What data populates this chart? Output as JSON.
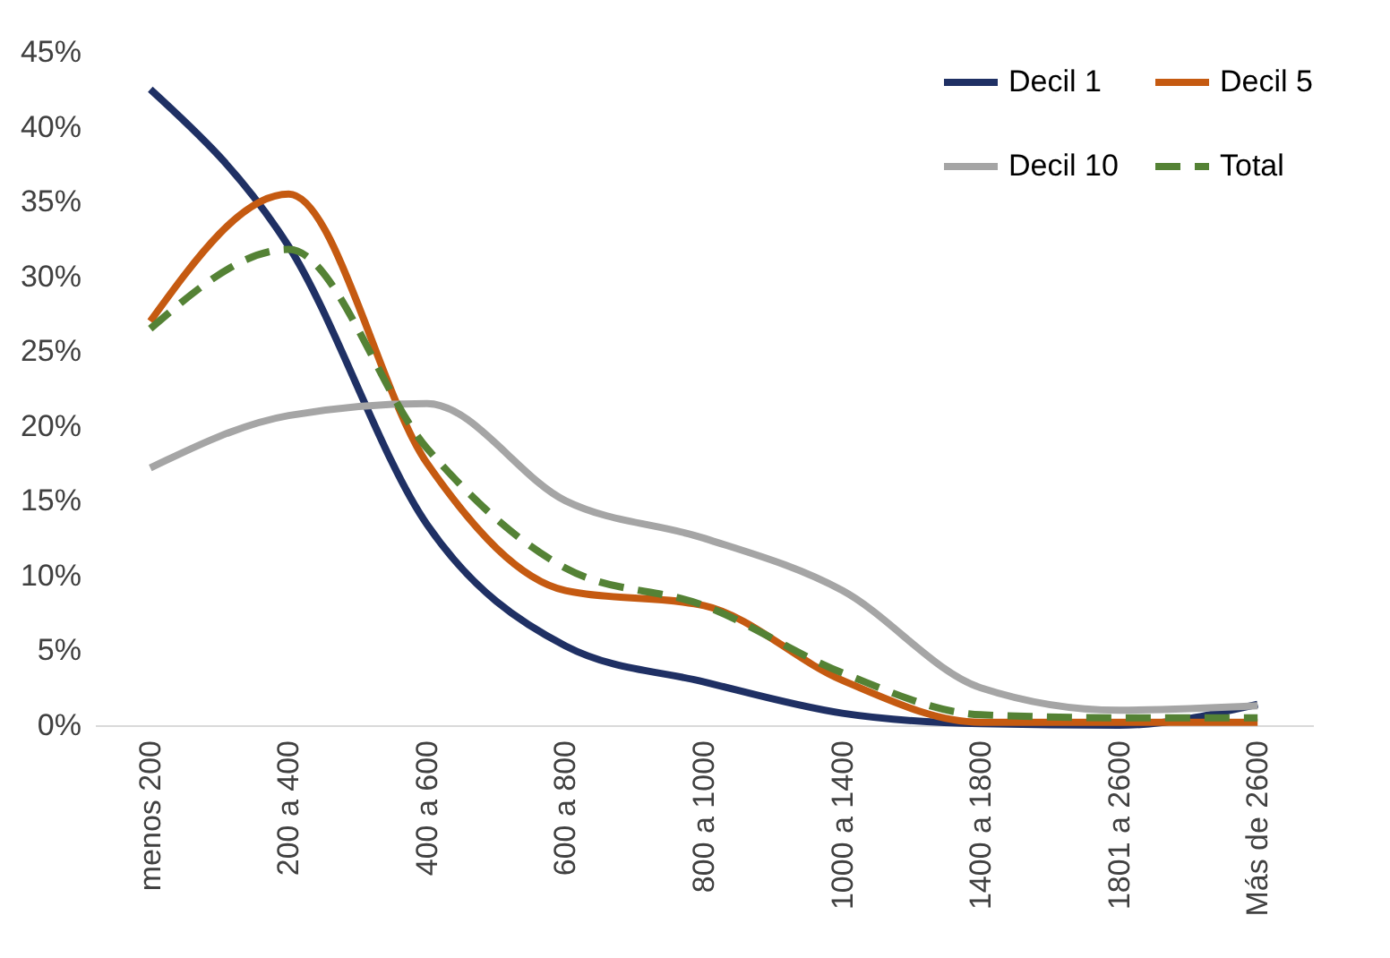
{
  "chart_data": {
    "type": "line",
    "categories": [
      "menos 200",
      "200 a 400",
      "400 a 600",
      "600 a 800",
      "800 a 1000",
      "1000 a 1400",
      "1400 a 1800",
      "1801 a 2600",
      "Más de 2600"
    ],
    "series": [
      {
        "name": "Decil 1",
        "color": "#1f3064",
        "line_style": "solid",
        "values": [
          42.5,
          32,
          13.4,
          5.3,
          2.9,
          0.8,
          0.1,
          0,
          1.4
        ]
      },
      {
        "name": "Decil 5",
        "color": "#c55a11",
        "line_style": "solid",
        "values": [
          27,
          35.5,
          17.5,
          9,
          8,
          3,
          0.2,
          0.2,
          0.2
        ]
      },
      {
        "name": "Decil 10",
        "color": "#a5a5a5",
        "line_style": "solid",
        "values": [
          17.2,
          20.7,
          21.5,
          15,
          12.5,
          9,
          2.5,
          1,
          1.3
        ]
      },
      {
        "name": "Total",
        "color": "#548235",
        "line_style": "dashed",
        "values": [
          26.5,
          31.8,
          18.5,
          10.5,
          8,
          3.5,
          0.7,
          0.5,
          0.5
        ]
      }
    ],
    "ylim": [
      0,
      45
    ],
    "yticks": [
      {
        "value": 0,
        "label": "0%"
      },
      {
        "value": 5,
        "label": "5%"
      },
      {
        "value": 10,
        "label": "10%"
      },
      {
        "value": 15,
        "label": "15%"
      },
      {
        "value": 20,
        "label": "20%"
      },
      {
        "value": 25,
        "label": "25%"
      },
      {
        "value": 30,
        "label": "30%"
      },
      {
        "value": 35,
        "label": "35%"
      },
      {
        "value": 40,
        "label": "40%"
      },
      {
        "value": 45,
        "label": "45%"
      }
    ],
    "grid": false,
    "legend": "top right"
  }
}
